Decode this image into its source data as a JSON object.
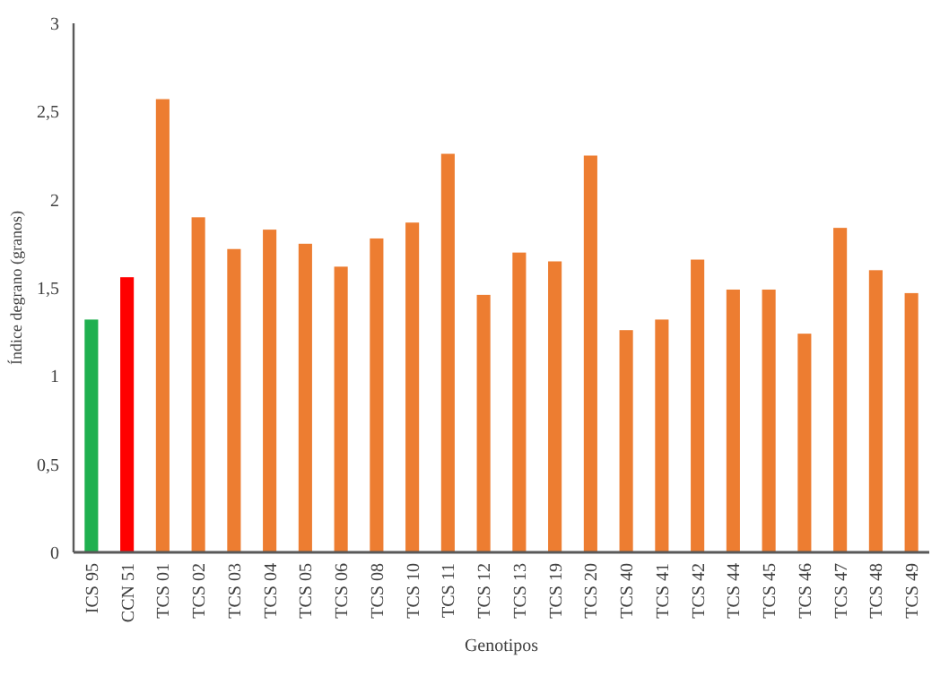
{
  "chart_data": {
    "type": "bar",
    "xlabel": "Genotipos",
    "ylabel": "Índice degrano (granos)",
    "categories": [
      "ICS 95",
      "CCN 51",
      "TCS 01",
      "TCS 02",
      "TCS 03",
      "TCS 04",
      "TCS 05",
      "TCS 06",
      "TCS 08",
      "TCS 10",
      "TCS 11",
      "TCS 12",
      "TCS 13",
      "TCS 19",
      "TCS 20",
      "TCS 40",
      "TCS 41",
      "TCS 42",
      "TCS 44",
      "TCS 45",
      "TCS 46",
      "TCS 47",
      "TCS 48",
      "TCS 49"
    ],
    "values": [
      1.32,
      1.56,
      2.57,
      1.9,
      1.72,
      1.83,
      1.75,
      1.62,
      1.78,
      1.87,
      2.26,
      1.46,
      1.7,
      1.65,
      2.25,
      1.26,
      1.32,
      1.66,
      1.49,
      1.49,
      1.24,
      1.84,
      1.6,
      1.47
    ],
    "colors": [
      "#1fb04f",
      "#ff0000",
      "#ed7d31",
      "#ed7d31",
      "#ed7d31",
      "#ed7d31",
      "#ed7d31",
      "#ed7d31",
      "#ed7d31",
      "#ed7d31",
      "#ed7d31",
      "#ed7d31",
      "#ed7d31",
      "#ed7d31",
      "#ed7d31",
      "#ed7d31",
      "#ed7d31",
      "#ed7d31",
      "#ed7d31",
      "#ed7d31",
      "#ed7d31",
      "#ed7d31",
      "#ed7d31",
      "#ed7d31"
    ],
    "ylim": [
      0,
      3
    ],
    "yticks": [
      0,
      {
        "value": 0.5,
        "label": "0,5"
      },
      1,
      {
        "value": 1.5,
        "label": "1,5"
      },
      2,
      {
        "value": 2.5,
        "label": "2,5"
      },
      3
    ],
    "grid": false
  }
}
